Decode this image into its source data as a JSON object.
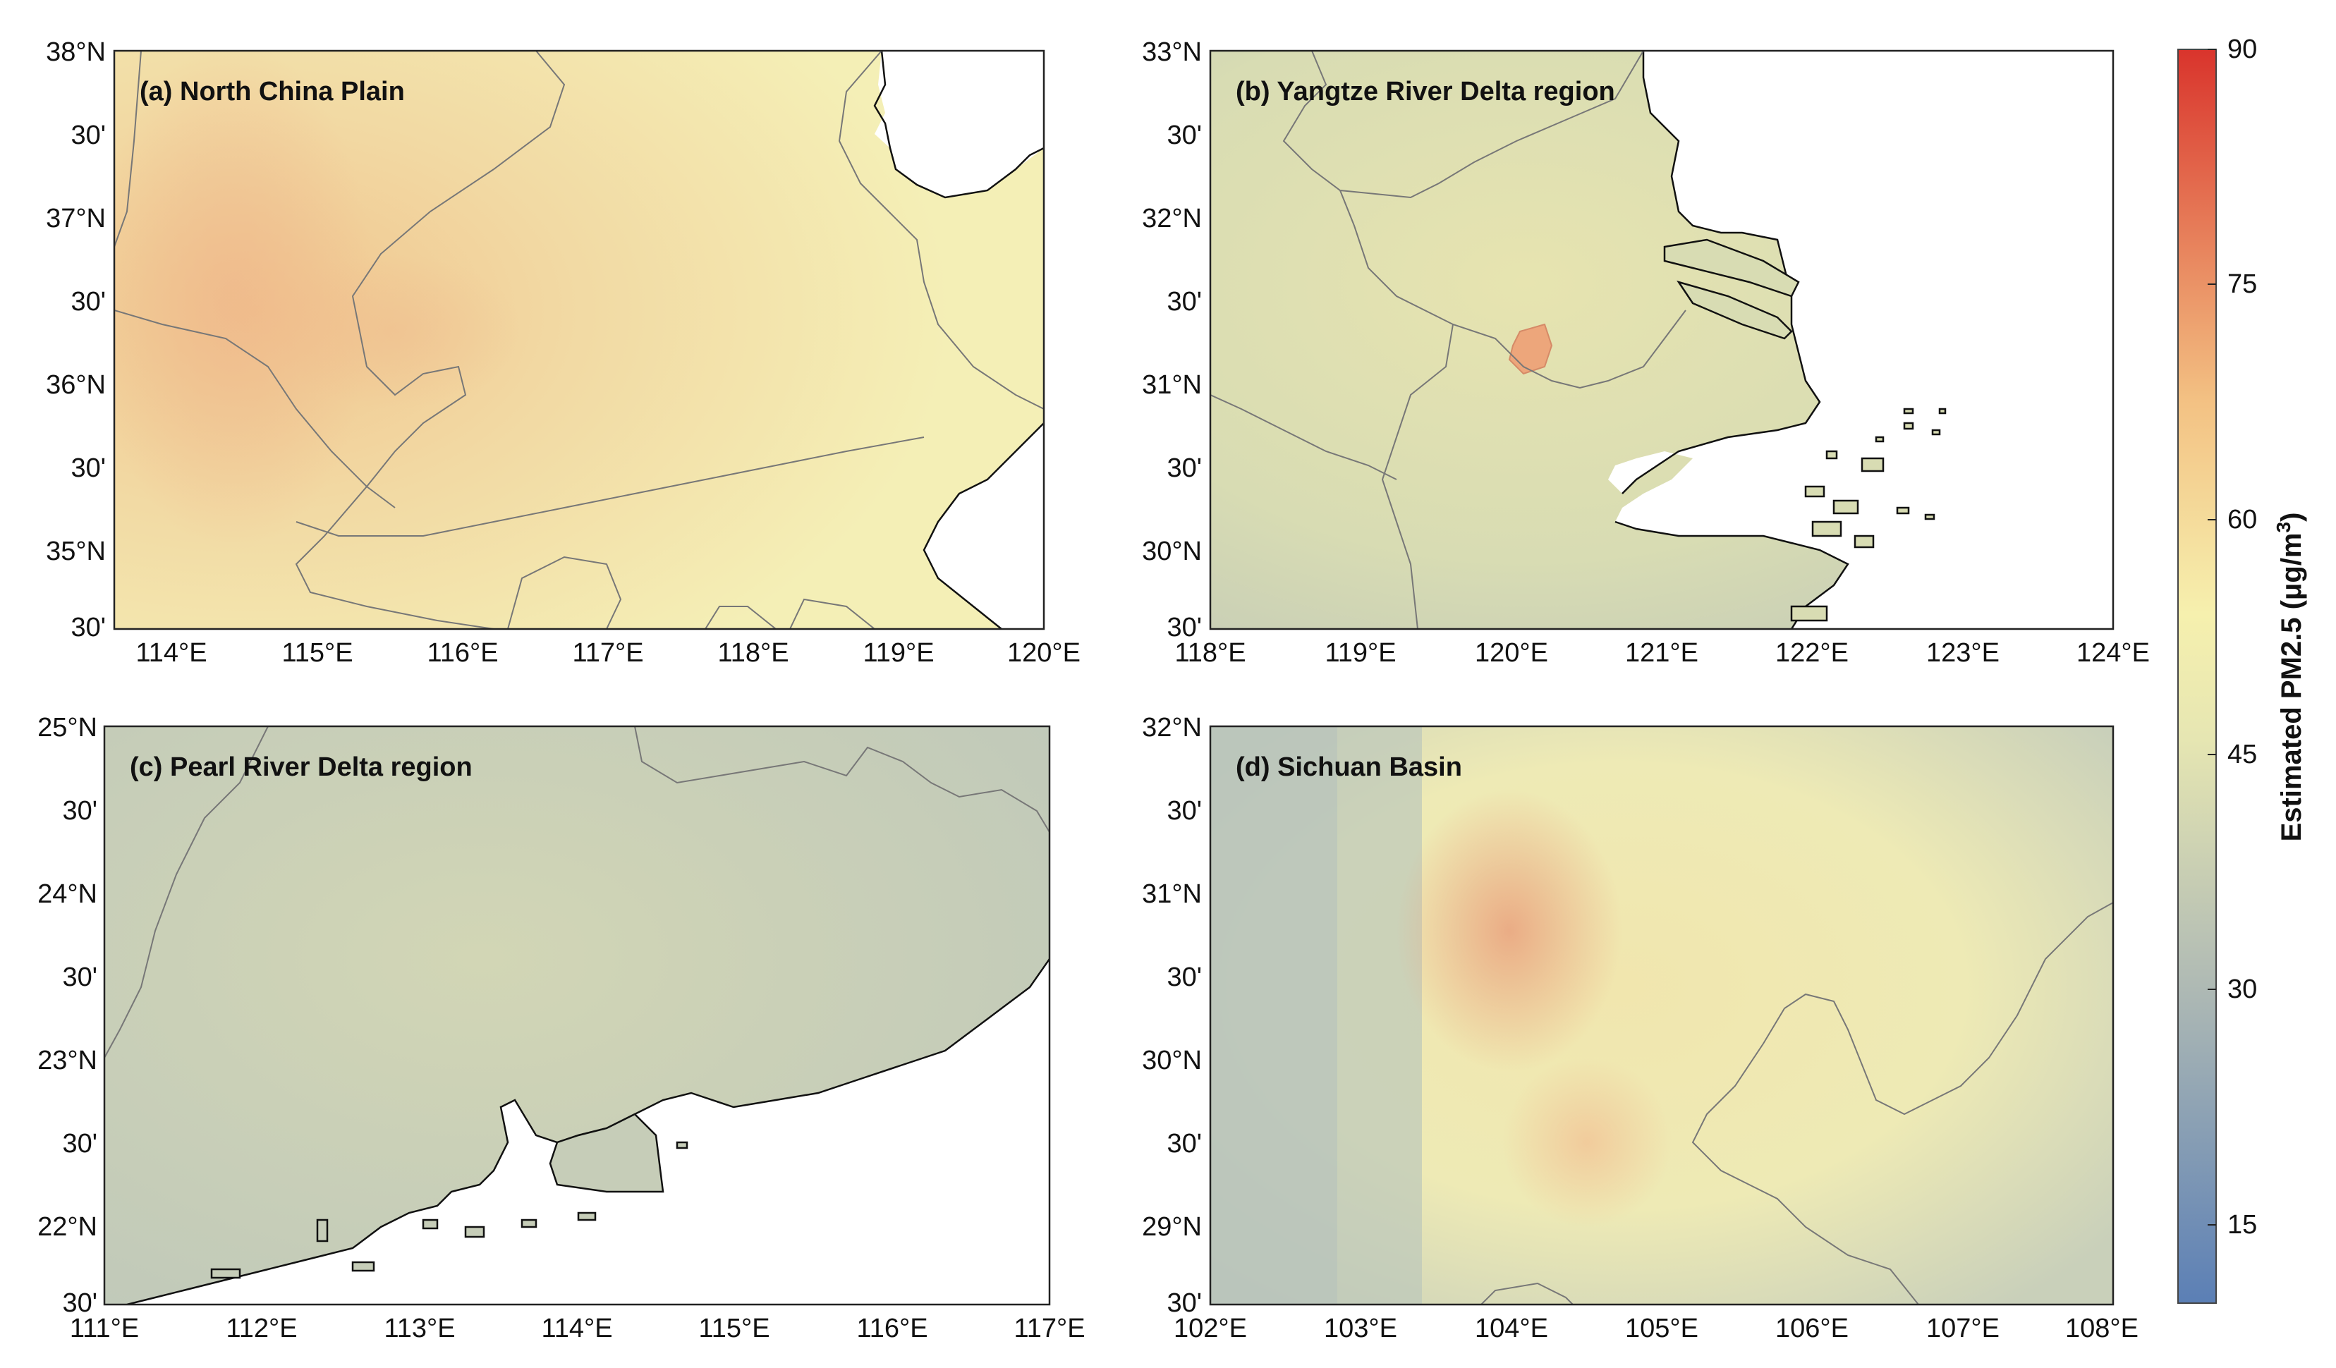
{
  "panels": [
    {
      "id": "a",
      "title": "(a) North China Plain",
      "y_labels": [
        "38°N",
        "30'",
        "37°N",
        "30'",
        "36°N",
        "30'",
        "35°N",
        "30'"
      ],
      "x_labels": [
        "114°E",
        "115°E",
        "116°E",
        "117°E",
        "118°E",
        "119°E",
        "120°E"
      ]
    },
    {
      "id": "b",
      "title": "(b) Yangtze River Delta region",
      "y_labels": [
        "33°N",
        "30'",
        "32°N",
        "30'",
        "31°N",
        "30'",
        "30°N",
        "30'"
      ],
      "x_labels": [
        "118°E",
        "119°E",
        "120°E",
        "121°E",
        "122°E",
        "123°E",
        "124°E"
      ]
    },
    {
      "id": "c",
      "title": "(c) Pearl River Delta region",
      "y_labels": [
        "25°N",
        "30'",
        "24°N",
        "30'",
        "23°N",
        "30'",
        "22°N",
        "30'"
      ],
      "x_labels": [
        "111°E",
        "112°E",
        "113°E",
        "114°E",
        "115°E",
        "116°E",
        "117°E"
      ]
    },
    {
      "id": "d",
      "title": "(d) Sichuan Basin",
      "y_labels": [
        "32°N",
        "30'",
        "31°N",
        "30'",
        "30°N",
        "30'",
        "29°N",
        "30'"
      ],
      "x_labels": [
        "102°E",
        "103°E",
        "104°E",
        "105°E",
        "106°E",
        "107°E",
        "108°E"
      ]
    }
  ],
  "colorbar": {
    "title": "Estimated PM2.5 (μg/m",
    "title_sup": "3",
    "title_end": ")",
    "ticks": [
      "90",
      "75",
      "60",
      "45",
      "30",
      "15"
    ],
    "range": [
      10,
      90
    ],
    "colors": {
      "low": "#5b7fb5",
      "mid_low": "#aeb9b4",
      "mid": "#f4f2b4",
      "mid_high": "#f2b27e",
      "high": "#d9342c"
    }
  },
  "land_colors": {
    "north_china": "#f2e7ab",
    "north_china_hot": "#f0c48e",
    "yangtze": "#d8dcb3",
    "pearl": "#c6cdb8",
    "sichuan": "#eeeab5",
    "sichuan_hot": "#eeb48a",
    "sea": "#ffffff"
  }
}
